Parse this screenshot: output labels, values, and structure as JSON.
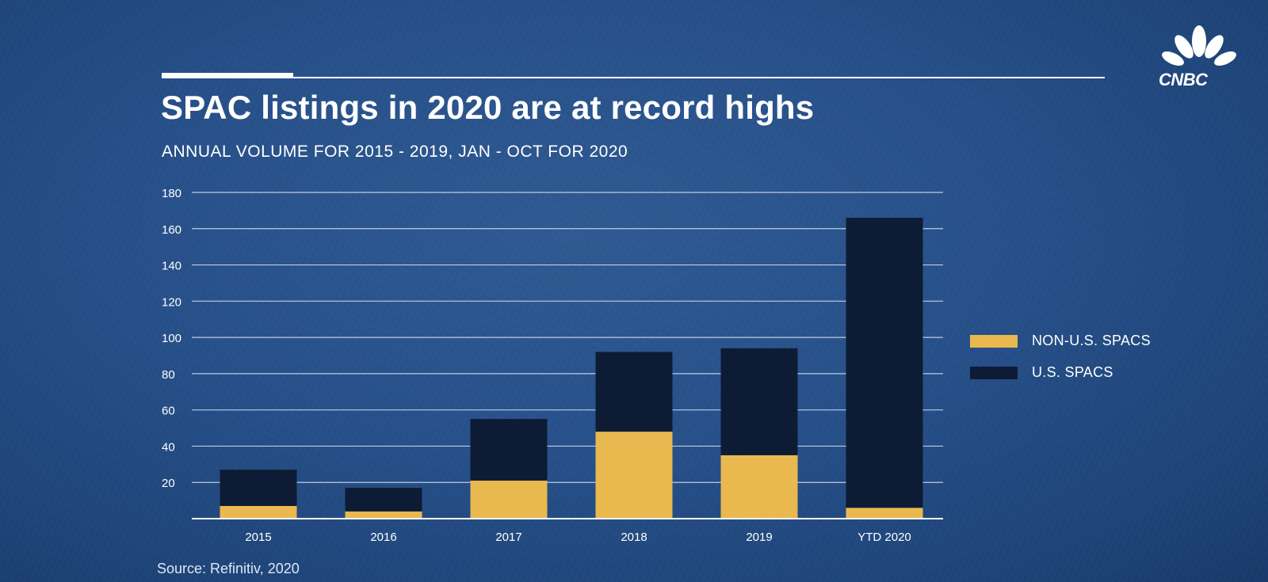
{
  "brand": {
    "name": "CNBC"
  },
  "colors": {
    "us": "#0e1b35",
    "non_us": "#e9b84e",
    "grid": "#d7e2f2",
    "axis": "#ffffff"
  },
  "header": {
    "title": "SPAC listings in 2020 are at record highs",
    "subtitle": "ANNUAL VOLUME FOR 2015 - 2019, JAN - OCT FOR 2020"
  },
  "footer": {
    "source": "Source: Refinitiv, 2020"
  },
  "chart_data": {
    "type": "bar",
    "stacked": true,
    "categories": [
      "2015",
      "2016",
      "2017",
      "2018",
      "2019",
      "YTD 2020"
    ],
    "series": [
      {
        "name": "NON-U.S. SPACS",
        "values": [
          7,
          4,
          21,
          48,
          35,
          6
        ],
        "color_key": "non_us"
      },
      {
        "name": "U.S. SPACS",
        "values": [
          20,
          13,
          34,
          44,
          59,
          160
        ],
        "color_key": "us"
      }
    ],
    "totals": [
      27,
      17,
      55,
      92,
      94,
      166
    ],
    "ylim": [
      0,
      180
    ],
    "yticks": [
      20,
      40,
      60,
      80,
      100,
      120,
      140,
      160,
      180
    ],
    "ytick_labels": [
      "20",
      "40",
      "60",
      "80",
      "100",
      "120",
      "140",
      "160",
      "180"
    ],
    "grid": true,
    "legend_position": "right",
    "title": "SPAC listings in 2020 are at record highs",
    "xlabel": "",
    "ylabel": ""
  }
}
